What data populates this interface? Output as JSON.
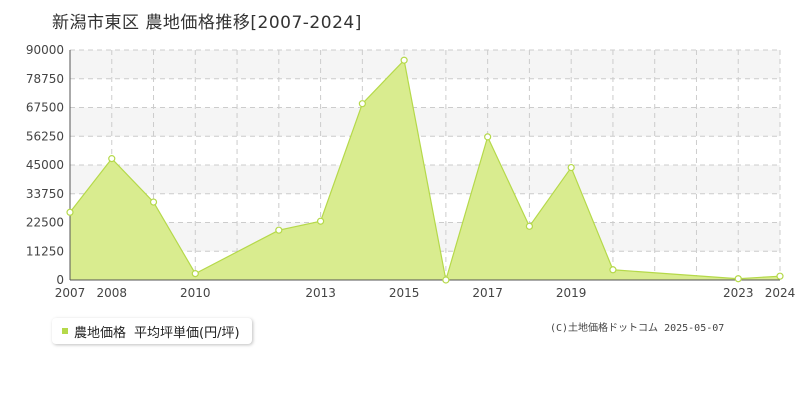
{
  "header": {
    "title": "新潟市東区  農地価格推移[2007-2024]"
  },
  "legend": {
    "series_label": "農地価格",
    "unit_label": "平均坪単価(円/坪)"
  },
  "footer": {
    "copyright": "(C)土地価格ドットコム 2025-05-07"
  },
  "colors": {
    "fill": "#d9ec8f",
    "line": "#b5d94a",
    "grid": "#cccccc",
    "band": "#f5f5f5"
  },
  "chart_data": {
    "type": "area",
    "title": "新潟市東区  農地価格推移[2007-2024]",
    "ylim": [
      0,
      90000
    ],
    "yticks": [
      0,
      11250,
      22500,
      33750,
      45000,
      56250,
      67500,
      78750,
      90000
    ],
    "x_tick_labels": [
      "2007",
      "2008",
      "2010",
      "2013",
      "2015",
      "2017",
      "2019",
      "2023",
      "2024"
    ],
    "grid": true,
    "legend_position": "bottom-left",
    "series": [
      {
        "name": "農地価格",
        "x": [
          2007,
          2008,
          2009,
          2010,
          2012,
          2013,
          2014,
          2015,
          2016,
          2017,
          2018,
          2019,
          2020,
          2023,
          2024
        ],
        "values": [
          26500,
          47500,
          30500,
          2500,
          19500,
          23000,
          69000,
          86000,
          0,
          56000,
          21000,
          44000,
          4000,
          500,
          1500
        ]
      }
    ]
  }
}
